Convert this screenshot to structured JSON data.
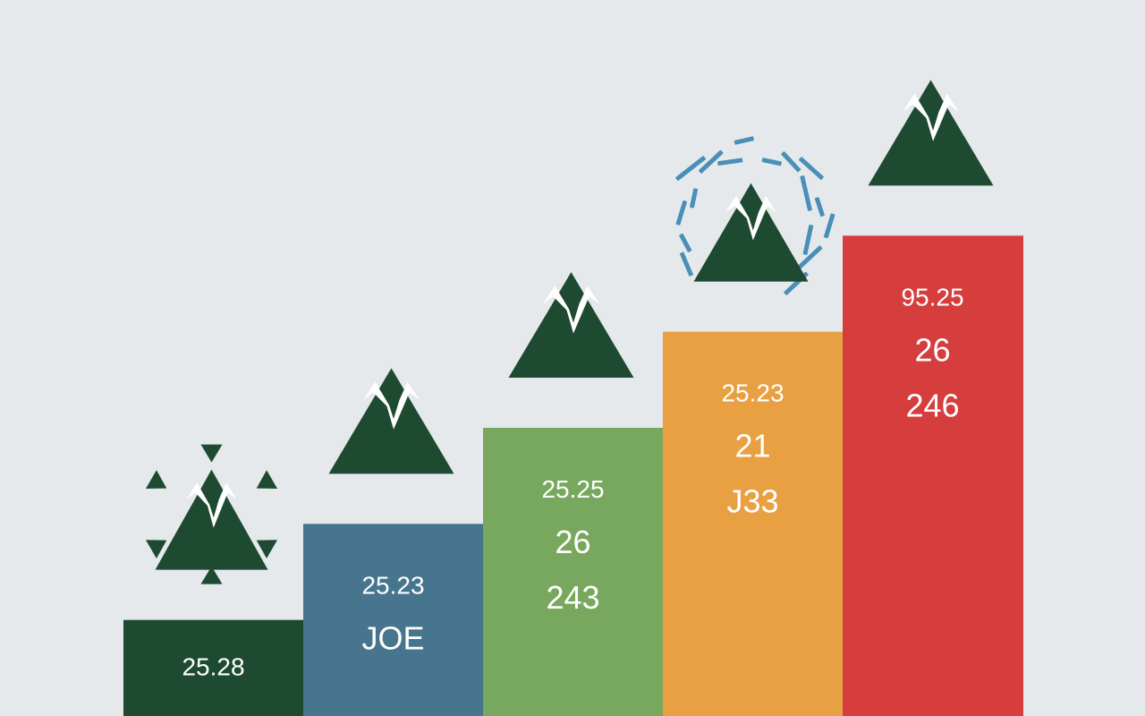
{
  "colors": {
    "background": "#e6e9ec",
    "mountain": "#1f4a32",
    "rays": "#1f4a32",
    "dashes": "#4a8fb8"
  },
  "chart_data": {
    "type": "bar",
    "title": "",
    "xlabel": "",
    "ylabel": "",
    "ylim": [
      0,
      6
    ],
    "categories": [
      "",
      "",
      "",
      "",
      ""
    ],
    "values": [
      1,
      2,
      3,
      4,
      5
    ],
    "bars": [
      {
        "color": "#1f4a32",
        "labels": [
          "25.28"
        ],
        "icon": "mountain-sunburst-icon"
      },
      {
        "color": "#46758d",
        "labels": [
          "25.23",
          "JOE"
        ],
        "icon": "mountain-icon"
      },
      {
        "color": "#78a85e",
        "labels": [
          "25.25",
          "26",
          "243"
        ],
        "icon": "mountain-icon"
      },
      {
        "color": "#e8a043",
        "labels": [
          "25.23",
          "21",
          "J33"
        ],
        "icon": "mountain-dashes-icon"
      },
      {
        "color": "#d53e3d",
        "labels": [
          "95.25",
          "26",
          "246"
        ],
        "icon": "mountain-icon"
      }
    ]
  }
}
